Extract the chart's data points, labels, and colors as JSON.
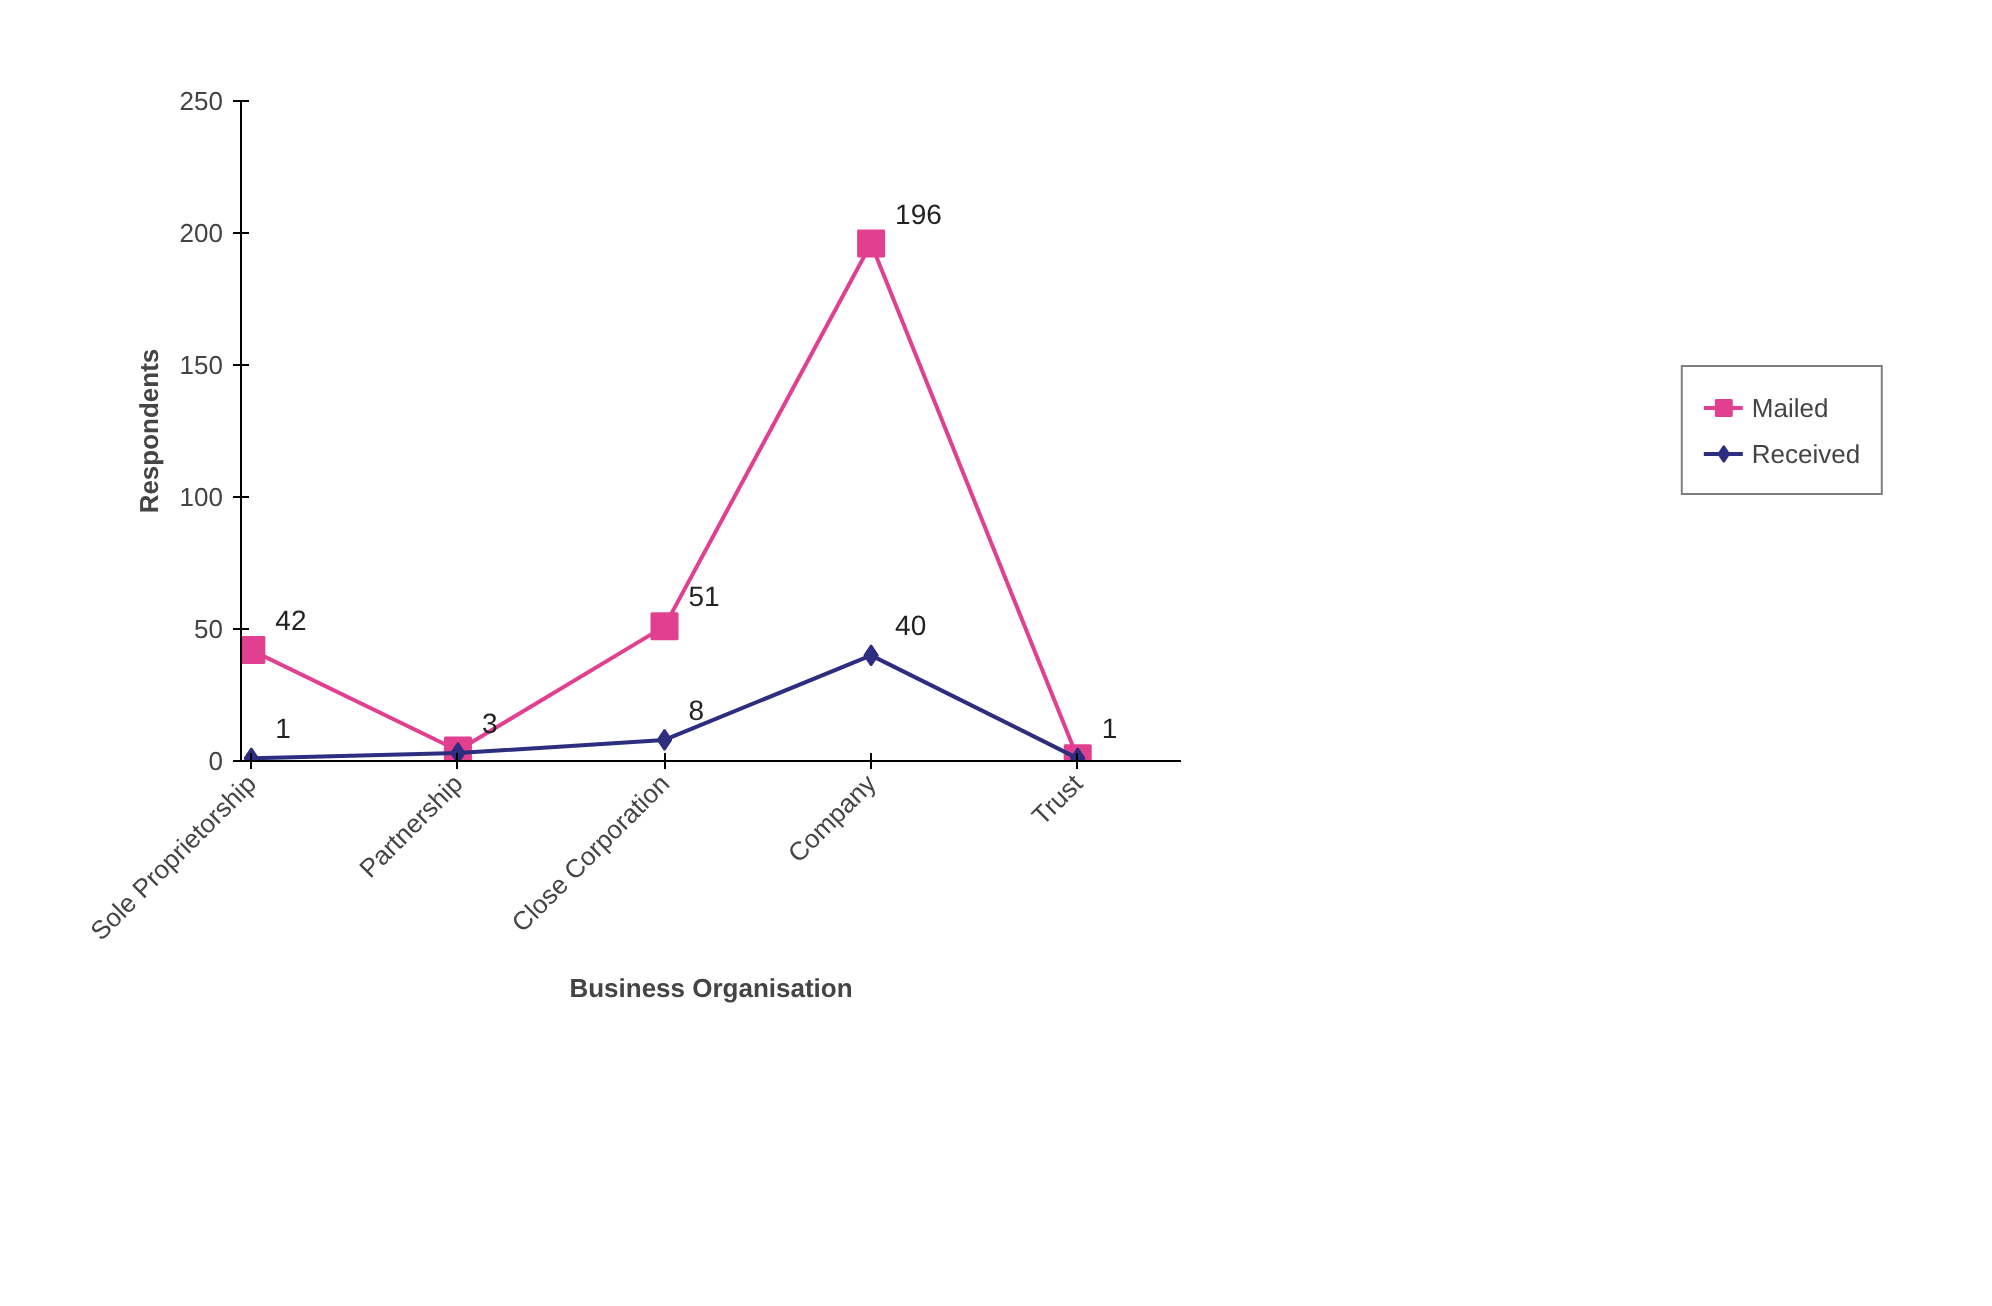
{
  "chart_data": {
    "type": "line",
    "xlabel": "Business Organisation",
    "ylabel": "Respondents",
    "categories": [
      "Sole Proprietorship",
      "Partnership",
      "Close Corporation",
      "Company",
      "Trust"
    ],
    "series": [
      {
        "name": "Mailed",
        "color": "#e0408f",
        "marker": "square",
        "values": [
          42,
          4,
          51,
          196,
          1
        ],
        "value_labels": [
          "42",
          null,
          "51",
          "196",
          null
        ]
      },
      {
        "name": "Received",
        "color": "#2e2e80",
        "marker": "diamond",
        "values": [
          1,
          3,
          8,
          40,
          1
        ],
        "value_labels": [
          "1",
          "3",
          "8",
          "40",
          "1"
        ]
      }
    ],
    "ylim": [
      0,
      250
    ],
    "yticks": [
      0,
      50,
      100,
      150,
      200,
      250
    ],
    "grid": false,
    "legend": "right",
    "line_style": "solid"
  }
}
